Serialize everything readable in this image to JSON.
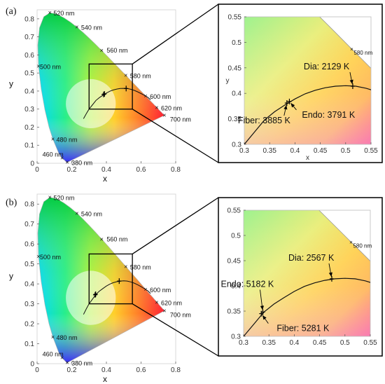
{
  "chart_data": [
    {
      "panel_label": "(a)",
      "type": "scatter",
      "xlabel": "x",
      "ylabel": "y",
      "xlim": [
        0,
        0.8
      ],
      "ylim": [
        0,
        0.85
      ],
      "x_ticks": [
        "0",
        "0.2",
        "0.4",
        "0.6",
        "0.8"
      ],
      "y_ticks": [
        "0",
        "0.1",
        "0.2",
        "0.3",
        "0.4",
        "0.5",
        "0.6",
        "0.7",
        "0.8"
      ],
      "wavelength_labels": [
        {
          "text": "380 nm",
          "x": 0.174,
          "y": 0.005
        },
        {
          "text": "460 nm",
          "x": 0.144,
          "y": 0.03
        },
        {
          "text": "480 nm",
          "x": 0.091,
          "y": 0.133
        },
        {
          "text": "500 nm",
          "x": 0.008,
          "y": 0.538
        },
        {
          "text": "520 nm",
          "x": 0.074,
          "y": 0.834
        },
        {
          "text": "540 nm",
          "x": 0.23,
          "y": 0.754
        },
        {
          "text": "560 nm",
          "x": 0.373,
          "y": 0.624
        },
        {
          "text": "580 nm",
          "x": 0.512,
          "y": 0.487
        },
        {
          "text": "600 nm",
          "x": 0.627,
          "y": 0.373
        },
        {
          "text": "620 nm",
          "x": 0.691,
          "y": 0.308
        },
        {
          "text": "700 nm",
          "x": 0.735,
          "y": 0.265
        }
      ],
      "zoom_box": {
        "x": [
          0.3,
          0.55
        ],
        "y": [
          0.3,
          0.55
        ]
      },
      "zoom_xlabel": "x",
      "zoom_ylabel": "y",
      "zoom_x_ticks": [
        "0.3",
        "0.35",
        "0.4",
        "0.45",
        "0.5",
        "0.55"
      ],
      "zoom_y_ticks": [
        "0.3",
        "0.35",
        "0.4",
        "0.45",
        "0.5",
        "0.55"
      ],
      "zoom_wavelength_label": "580 nm",
      "points": [
        {
          "label": "Fiber: 3885 K",
          "x": 0.384,
          "y": 0.381
        },
        {
          "label": "Endo: 3791 K",
          "x": 0.389,
          "y": 0.384
        },
        {
          "label": "Dia: 2129 K",
          "x": 0.514,
          "y": 0.414
        }
      ]
    },
    {
      "panel_label": "(b)",
      "type": "scatter",
      "xlabel": "x",
      "ylabel": "y",
      "xlim": [
        0,
        0.8
      ],
      "ylim": [
        0,
        0.85
      ],
      "x_ticks": [
        "0",
        "0.2",
        "0.4",
        "0.6",
        "0.8"
      ],
      "y_ticks": [
        "0",
        "0.1",
        "0.2",
        "0.3",
        "0.4",
        "0.5",
        "0.6",
        "0.7",
        "0.8"
      ],
      "wavelength_labels": [
        {
          "text": "380 nm",
          "x": 0.174,
          "y": 0.005
        },
        {
          "text": "460 nm",
          "x": 0.144,
          "y": 0.03
        },
        {
          "text": "480 nm",
          "x": 0.091,
          "y": 0.133
        },
        {
          "text": "500 nm",
          "x": 0.008,
          "y": 0.538
        },
        {
          "text": "520 nm",
          "x": 0.074,
          "y": 0.834
        },
        {
          "text": "540 nm",
          "x": 0.23,
          "y": 0.754
        },
        {
          "text": "560 nm",
          "x": 0.373,
          "y": 0.624
        },
        {
          "text": "580 nm",
          "x": 0.512,
          "y": 0.487
        },
        {
          "text": "600 nm",
          "x": 0.627,
          "y": 0.373
        },
        {
          "text": "620 nm",
          "x": 0.691,
          "y": 0.308
        },
        {
          "text": "700 nm",
          "x": 0.735,
          "y": 0.265
        }
      ],
      "zoom_box": {
        "x": [
          0.3,
          0.55
        ],
        "y": [
          0.3,
          0.55
        ]
      },
      "zoom_xlabel": "",
      "zoom_ylabel": "",
      "zoom_x_ticks": [
        "0.3",
        "0.35",
        "0.4",
        "0.45",
        "0.5",
        "0.55"
      ],
      "zoom_y_ticks": [
        "0.3",
        "0.35",
        "0.4",
        "0.45",
        "0.5",
        "0.55"
      ],
      "zoom_wavelength_label": "580 nm",
      "points": [
        {
          "label": "Endo: 5182 K",
          "x": 0.338,
          "y": 0.348
        },
        {
          "label": "Fiber: 5281 K",
          "x": 0.335,
          "y": 0.345
        },
        {
          "label": "Dia: 2567 K",
          "x": 0.474,
          "y": 0.414
        }
      ]
    }
  ]
}
